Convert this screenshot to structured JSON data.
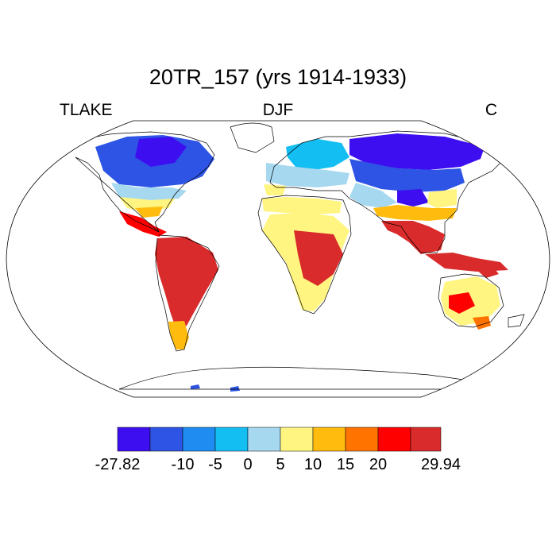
{
  "title": "20TR_157 (yrs 1914-1933)",
  "left_label": "TLAKE",
  "center_label": "DJF",
  "right_label": "C",
  "colorbar": {
    "colors": [
      "#3d0ff0",
      "#2d54e4",
      "#1e8cf0",
      "#12bef2",
      "#a6d8f0",
      "#fff580",
      "#ffbc0f",
      "#ff7300",
      "#ff0000",
      "#d92b2b"
    ],
    "labels": [
      "-27.82",
      "-10",
      "-5",
      "0",
      "5",
      "10",
      "15",
      "20",
      "29.94"
    ]
  }
}
